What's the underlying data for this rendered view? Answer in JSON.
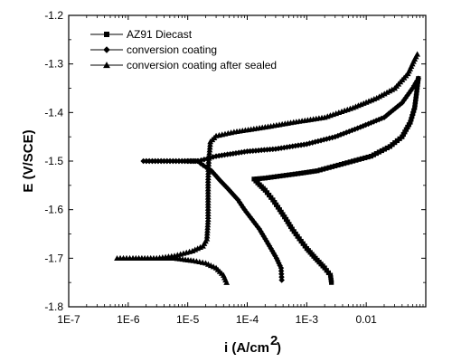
{
  "chart_data": {
    "type": "line",
    "title": "",
    "xlabel": "i  (A/cm",
    "xlabel_sup": "2",
    "xlabel_close": ")",
    "ylabel": "E (V/SCE)",
    "xscale": "log",
    "xlim": [
      1e-07,
      0.1
    ],
    "ylim": [
      -1.8,
      -1.2
    ],
    "xticks": [
      1e-07,
      1e-06,
      1e-05,
      0.0001,
      0.001,
      0.01
    ],
    "xtick_labels": [
      "1E-7",
      "1E-6",
      "1E-5",
      "1E-4",
      "1E-3",
      "0.01"
    ],
    "yticks": [
      -1.8,
      -1.7,
      -1.6,
      -1.5,
      -1.4,
      -1.3,
      -1.2
    ],
    "ytick_labels": [
      "-1.8",
      "-1.7",
      "-1.6",
      "-1.5",
      "-1.4",
      "-1.3",
      "-1.2"
    ],
    "legend_position": "top-left",
    "color": "#000000",
    "series": [
      {
        "name": "AZ91 Diecast",
        "marker": "square",
        "points": [
          [
            0.0026,
            -1.75
          ],
          [
            0.0025,
            -1.735
          ],
          [
            0.002,
            -1.72
          ],
          [
            0.0014,
            -1.7
          ],
          [
            0.001,
            -1.68
          ],
          [
            0.00075,
            -1.66
          ],
          [
            0.00057,
            -1.64
          ],
          [
            0.00045,
            -1.62
          ],
          [
            0.00035,
            -1.6
          ],
          [
            0.00027,
            -1.58
          ],
          [
            0.0002,
            -1.56
          ],
          [
            0.00015,
            -1.545
          ],
          [
            0.00013,
            -1.537
          ],
          [
            0.0002,
            -1.535
          ],
          [
            0.0004,
            -1.53
          ],
          [
            0.0008,
            -1.525
          ],
          [
            0.0015,
            -1.52
          ],
          [
            0.003,
            -1.51
          ],
          [
            0.006,
            -1.5
          ],
          [
            0.012,
            -1.49
          ],
          [
            0.025,
            -1.47
          ],
          [
            0.04,
            -1.45
          ],
          [
            0.055,
            -1.42
          ],
          [
            0.065,
            -1.39
          ],
          [
            0.07,
            -1.36
          ],
          [
            0.075,
            -1.33
          ]
        ]
      },
      {
        "name": "conversion coating",
        "marker": "diamond",
        "points": [
          [
            0.00038,
            -1.745
          ],
          [
            0.00037,
            -1.72
          ],
          [
            0.00031,
            -1.7
          ],
          [
            0.00025,
            -1.68
          ],
          [
            0.0002,
            -1.66
          ],
          [
            0.00016,
            -1.64
          ],
          [
            0.00012,
            -1.62
          ],
          [
            9e-05,
            -1.6
          ],
          [
            7e-05,
            -1.58
          ],
          [
            5e-05,
            -1.56
          ],
          [
            3.5e-05,
            -1.54
          ],
          [
            2.5e-05,
            -1.52
          ],
          [
            1.65e-05,
            -1.505
          ],
          [
            1.45e-05,
            -1.5
          ],
          [
            8e-06,
            -1.5
          ],
          [
            4e-06,
            -1.5
          ],
          [
            1.8e-06,
            -1.5
          ],
          [
            4e-06,
            -1.5
          ],
          [
            8e-06,
            -1.5
          ],
          [
            1.5e-05,
            -1.5
          ],
          [
            3e-05,
            -1.49
          ],
          [
            0.0001,
            -1.48
          ],
          [
            0.0003,
            -1.475
          ],
          [
            0.001,
            -1.465
          ],
          [
            0.003,
            -1.45
          ],
          [
            0.008,
            -1.43
          ],
          [
            0.02,
            -1.41
          ],
          [
            0.04,
            -1.38
          ],
          [
            0.06,
            -1.35
          ],
          [
            0.075,
            -1.33
          ]
        ]
      },
      {
        "name": "conversion coating after sealed",
        "marker": "triangle",
        "points": [
          [
            4.5e-05,
            -1.75
          ],
          [
            4e-05,
            -1.735
          ],
          [
            3e-05,
            -1.72
          ],
          [
            2e-05,
            -1.71
          ],
          [
            1.25e-05,
            -1.705
          ],
          [
            6e-06,
            -1.7
          ],
          [
            3e-06,
            -1.7
          ],
          [
            1.2e-06,
            -1.7
          ],
          [
            6.5e-07,
            -1.7
          ],
          [
            1.2e-06,
            -1.7
          ],
          [
            3e-06,
            -1.7
          ],
          [
            6e-06,
            -1.695
          ],
          [
            1.2e-05,
            -1.685
          ],
          [
            1.8e-05,
            -1.675
          ],
          [
            2.1e-05,
            -1.66
          ],
          [
            2.2e-05,
            -1.62
          ],
          [
            2.2e-05,
            -1.58
          ],
          [
            2.2e-05,
            -1.54
          ],
          [
            2.25e-05,
            -1.5
          ],
          [
            2.4e-05,
            -1.46
          ],
          [
            3e-05,
            -1.448
          ],
          [
            6e-05,
            -1.44
          ],
          [
            0.0002,
            -1.43
          ],
          [
            0.0006,
            -1.42
          ],
          [
            0.002,
            -1.41
          ],
          [
            0.006,
            -1.39
          ],
          [
            0.015,
            -1.37
          ],
          [
            0.03,
            -1.35
          ],
          [
            0.05,
            -1.32
          ],
          [
            0.065,
            -1.29
          ],
          [
            0.072,
            -1.28
          ]
        ]
      }
    ]
  }
}
